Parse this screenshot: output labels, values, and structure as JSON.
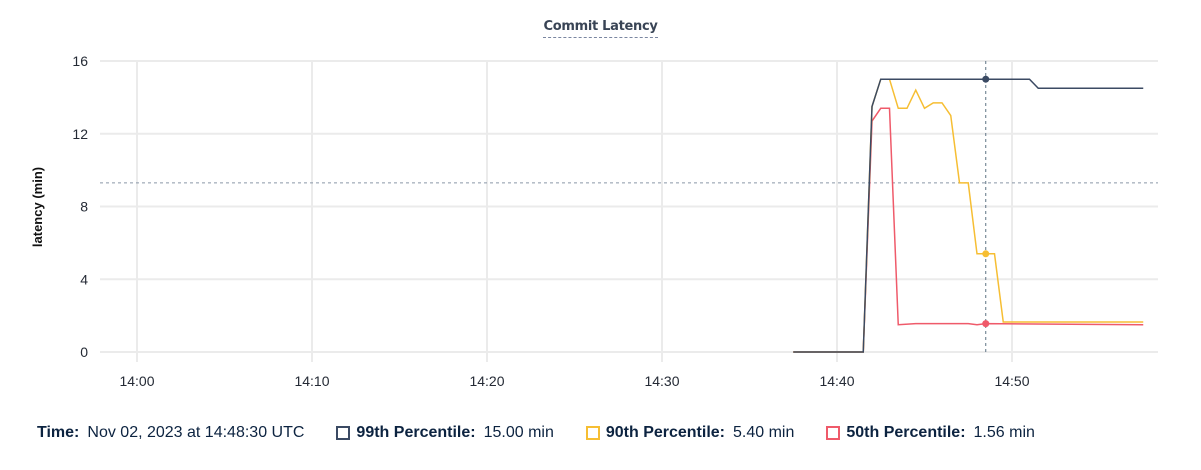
{
  "chart_data": {
    "type": "line",
    "title": "Commit Latency",
    "ylabel": "latency (min)",
    "xlabel": "",
    "xlim": [
      "13:58:30",
      "14:59:30"
    ],
    "ylim": [
      0,
      16
    ],
    "yticks": [
      0,
      4,
      8,
      12,
      16
    ],
    "xticks": [
      "14:00",
      "14:10",
      "14:20",
      "14:30",
      "14:40",
      "14:50"
    ],
    "grid": true,
    "reference_line": 9.3,
    "hover_time": "14:48:30",
    "series": [
      {
        "name": "99th Percentile",
        "color": "#3b4a63",
        "points": [
          [
            "14:37:30",
            0
          ],
          [
            "14:41:30",
            0
          ],
          [
            "14:42:00",
            13.5
          ],
          [
            "14:42:30",
            15
          ],
          [
            "14:43:00",
            15
          ],
          [
            "14:48:30",
            15
          ],
          [
            "14:51:00",
            15
          ],
          [
            "14:51:30",
            14.5
          ],
          [
            "14:57:30",
            14.5
          ]
        ]
      },
      {
        "name": "90th Percentile",
        "color": "#f6be33",
        "points": [
          [
            "14:37:30",
            0
          ],
          [
            "14:41:30",
            0
          ],
          [
            "14:42:00",
            13.5
          ],
          [
            "14:42:30",
            15
          ],
          [
            "14:43:00",
            15
          ],
          [
            "14:43:30",
            13.4
          ],
          [
            "14:44:00",
            13.4
          ],
          [
            "14:44:30",
            14.4
          ],
          [
            "14:45:00",
            13.4
          ],
          [
            "14:45:30",
            13.7
          ],
          [
            "14:46:00",
            13.7
          ],
          [
            "14:46:30",
            13
          ],
          [
            "14:47:00",
            9.3
          ],
          [
            "14:47:30",
            9.3
          ],
          [
            "14:48:00",
            5.4
          ],
          [
            "14:48:30",
            5.4
          ],
          [
            "14:49:00",
            5.4
          ],
          [
            "14:49:30",
            1.65
          ],
          [
            "14:57:30",
            1.65
          ]
        ]
      },
      {
        "name": "50th Percentile",
        "color": "#ef5a6a",
        "points": [
          [
            "14:37:30",
            0
          ],
          [
            "14:41:30",
            0
          ],
          [
            "14:42:00",
            12.7
          ],
          [
            "14:42:30",
            13.4
          ],
          [
            "14:43:00",
            13.4
          ],
          [
            "14:43:30",
            1.5
          ],
          [
            "14:44:30",
            1.56
          ],
          [
            "14:47:30",
            1.56
          ],
          [
            "14:48:00",
            1.5
          ],
          [
            "14:48:30",
            1.56
          ],
          [
            "14:57:30",
            1.5
          ]
        ]
      }
    ]
  },
  "legend": {
    "time_label": "Time:",
    "time_value": "Nov 02, 2023 at 14:48:30 UTC",
    "items": [
      {
        "label": "99th Percentile:",
        "value": "15.00 min",
        "color": "#3b4a63"
      },
      {
        "label": "90th Percentile:",
        "value": "5.40 min",
        "color": "#f6be33"
      },
      {
        "label": "50th Percentile:",
        "value": "1.56 min",
        "color": "#ef5a6a"
      }
    ]
  }
}
